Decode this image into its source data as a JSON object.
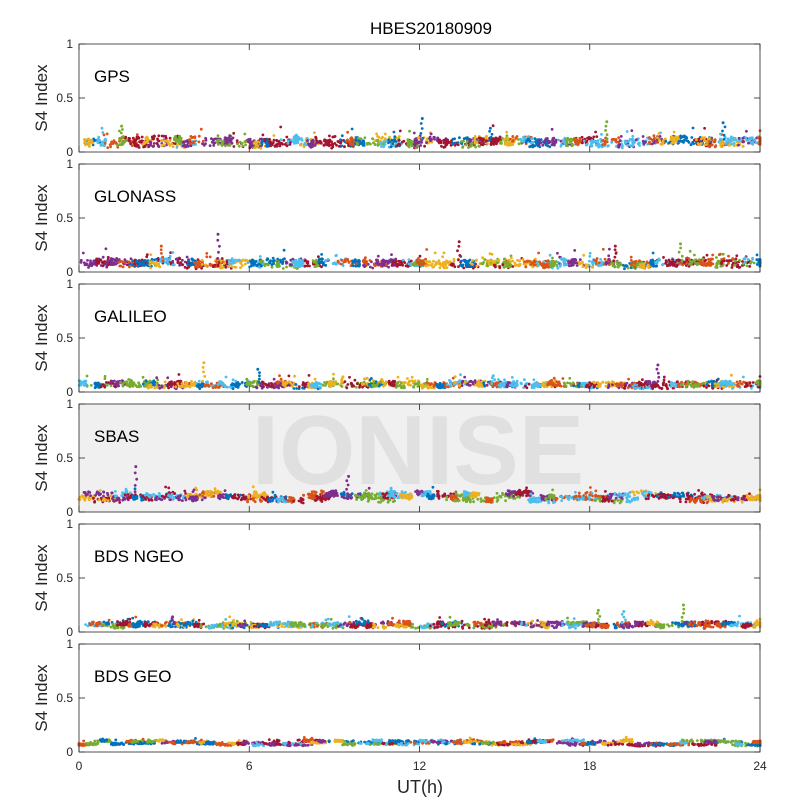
{
  "chart_data": {
    "type": "scatter",
    "title": "HBES20180909",
    "xlabel": "UT(h)",
    "ylabel": "S4 Index",
    "xlim": [
      0,
      24
    ],
    "ylim": [
      0,
      1
    ],
    "x_ticks": [
      0,
      6,
      12,
      18,
      24
    ],
    "y_ticks": [
      0,
      0.5,
      1
    ],
    "watermark": "IONISE",
    "grid": false,
    "series_colors": [
      "#0072BD",
      "#D95319",
      "#EDB120",
      "#7E2F8E",
      "#77AC30",
      "#4DBEEE",
      "#A2142F"
    ],
    "panels": [
      {
        "label": "GPS",
        "baseline": 0.08,
        "spread": 0.045,
        "spikes": [
          [
            1.5,
            0.24
          ],
          [
            12.1,
            0.31
          ],
          [
            18.6,
            0.28
          ],
          [
            22.7,
            0.27
          ],
          [
            14.5,
            0.22
          ]
        ]
      },
      {
        "label": "GLONASS",
        "baseline": 0.07,
        "spread": 0.04,
        "spikes": [
          [
            4.9,
            0.35
          ],
          [
            2.9,
            0.24
          ],
          [
            13.4,
            0.28
          ],
          [
            21.2,
            0.26
          ],
          [
            18.9,
            0.24
          ]
        ]
      },
      {
        "label": "GALILEO",
        "baseline": 0.06,
        "spread": 0.03,
        "spikes": [
          [
            4.4,
            0.27
          ],
          [
            6.3,
            0.21
          ],
          [
            20.4,
            0.25
          ],
          [
            9.3,
            0.14
          ],
          [
            14.6,
            0.15
          ]
        ]
      },
      {
        "label": "SBAS",
        "baseline": 0.13,
        "spread": 0.03,
        "spikes": [
          [
            2.0,
            0.42
          ],
          [
            9.5,
            0.33
          ],
          [
            11.0,
            0.22
          ]
        ]
      },
      {
        "label": "BDS NGEO",
        "baseline": 0.06,
        "spread": 0.025,
        "spikes": [
          [
            21.3,
            0.25
          ],
          [
            18.3,
            0.2
          ],
          [
            3.3,
            0.14
          ],
          [
            19.2,
            0.19
          ]
        ]
      },
      {
        "label": "BDS GEO",
        "baseline": 0.08,
        "spread": 0.012,
        "spikes": []
      }
    ]
  }
}
